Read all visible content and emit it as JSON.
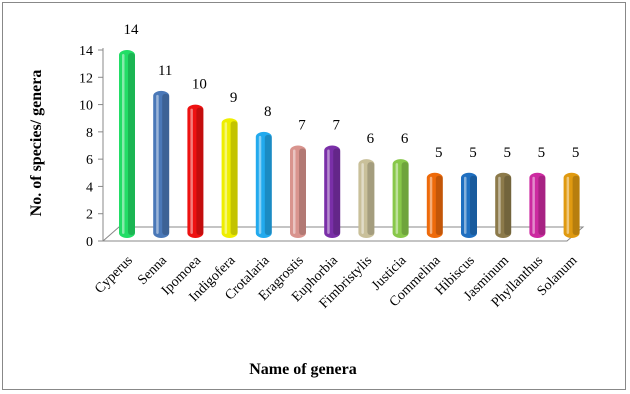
{
  "chart_data": {
    "type": "bar",
    "style": "3d-cylinder",
    "categories": [
      "Cyperus",
      "Senna",
      "Ipomoea",
      "Indigofera",
      "Crotalaria",
      "Eragrostis",
      "Euphorbia",
      "Fimbristylis",
      "Justicia",
      "Commelina",
      "Hibiscus",
      "Jasminum",
      "Phyllanthus",
      "Solanum"
    ],
    "values": [
      14,
      11,
      10,
      9,
      8,
      7,
      7,
      6,
      6,
      5,
      5,
      5,
      5,
      5
    ],
    "colors": [
      "#22dd66",
      "#4a78b8",
      "#ee1111",
      "#eeee00",
      "#22aaee",
      "#d9948e",
      "#7a2fa8",
      "#c9c09a",
      "#88c84a",
      "#ee6a0a",
      "#1f6fc0",
      "#8c7a4a",
      "#cc2aa0",
      "#e09a10"
    ],
    "xlabel": "Name of genera",
    "ylabel": "No. of species/ genera",
    "ylim": [
      0,
      14
    ],
    "yticks": [
      0,
      2,
      4,
      6,
      8,
      10,
      12,
      14
    ],
    "grid": false,
    "legend": "none"
  }
}
